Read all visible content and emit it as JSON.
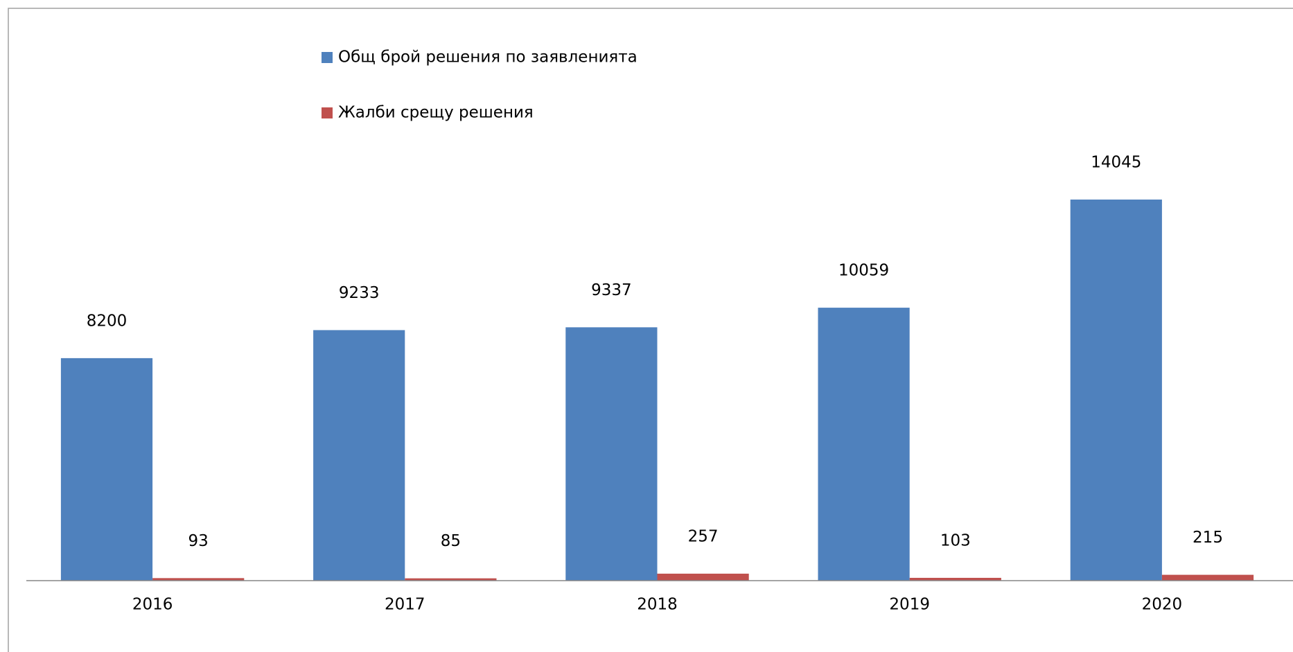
{
  "chart_data": {
    "type": "bar",
    "categories": [
      "2016",
      "2017",
      "2018",
      "2019",
      "2020"
    ],
    "series": [
      {
        "name": "Общ брой решения по заявленията",
        "color": "#4f81bd",
        "values": [
          8200,
          9233,
          9337,
          10059,
          14045
        ]
      },
      {
        "name": "Жалби срещу решения",
        "color": "#c0504d",
        "values": [
          93,
          85,
          257,
          103,
          215
        ]
      }
    ],
    "legend": "top"
  }
}
